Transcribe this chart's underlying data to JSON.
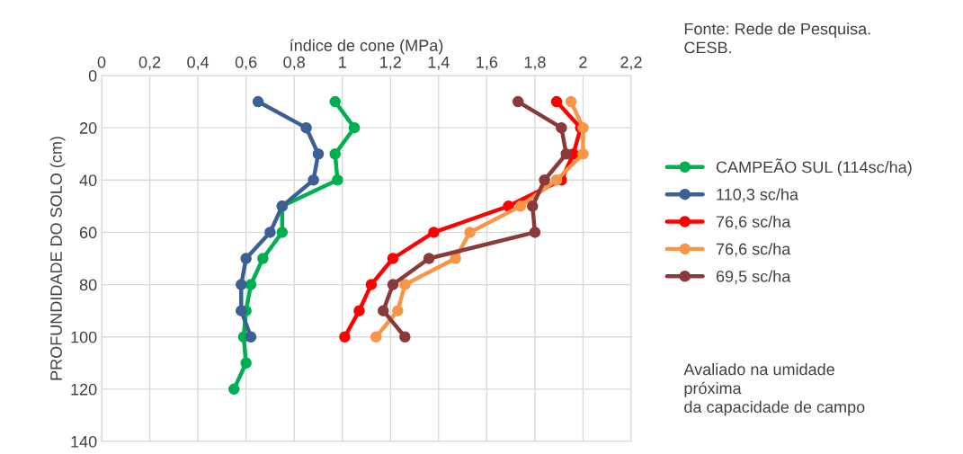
{
  "chart_data": {
    "type": "line",
    "xlabel": "índice de cone (MPa)",
    "ylabel": "PROFUNDIDADE DO SOLO (cm)",
    "xlim": [
      0,
      2.2
    ],
    "xticks": [
      0,
      {
        "value": 0.2,
        "label": "0,2"
      },
      {
        "value": 0.4,
        "label": "0,4"
      },
      {
        "value": 0.6,
        "label": "0,6"
      },
      {
        "value": 0.8,
        "label": "0,8"
      },
      1,
      {
        "value": 1.2,
        "label": "1,2"
      },
      {
        "value": 1.4,
        "label": "1,4"
      },
      {
        "value": 1.6,
        "label": "1,6"
      },
      {
        "value": 1.8,
        "label": "1,8"
      },
      2,
      {
        "value": 2.2,
        "label": "2,2"
      }
    ],
    "ylim": [
      140,
      0
    ],
    "yticks": [
      0,
      20,
      40,
      60,
      80,
      100,
      120,
      140
    ],
    "grid": true,
    "legend": "right",
    "marker": "circle",
    "line_style": "solid",
    "annotations": [
      "Fonte: Rede de Pesquisa.\nCESB.",
      "Avaliado na umidade\npróxima\nda capacidade de campo"
    ],
    "series": [
      {
        "name": "CAMPEÃO SUL (114sc/ha)",
        "color": "#00b050",
        "x": [
          0.97,
          1.05,
          0.97,
          0.98,
          0.75,
          0.75,
          0.67,
          0.62,
          0.6,
          0.59,
          0.6,
          0.55
        ],
        "values": [
          10,
          20,
          30,
          40,
          50,
          60,
          70,
          80,
          90,
          100,
          110,
          120
        ]
      },
      {
        "name": "110,3 sc/ha",
        "color": "#3b6094",
        "x": [
          0.65,
          0.85,
          0.9,
          0.88,
          0.75,
          0.7,
          0.6,
          0.58,
          0.58,
          0.62
        ],
        "values": [
          10,
          20,
          30,
          40,
          50,
          60,
          70,
          80,
          90,
          100
        ]
      },
      {
        "name": "76,6 sc/ha",
        "color": "#ff0000",
        "x": [
          1.89,
          1.99,
          1.96,
          1.91,
          1.69,
          1.38,
          1.21,
          1.12,
          1.07,
          1.01
        ],
        "values": [
          10,
          20,
          30,
          40,
          50,
          60,
          70,
          80,
          90,
          100
        ]
      },
      {
        "name": "76,6 sc/ha",
        "color": "#f79646",
        "x": [
          1.95,
          2.0,
          2.0,
          1.89,
          1.74,
          1.53,
          1.47,
          1.26,
          1.23,
          1.14
        ],
        "values": [
          10,
          20,
          30,
          40,
          50,
          60,
          70,
          80,
          90,
          100
        ]
      },
      {
        "name": "69,5 sc/ha",
        "color": "#8b3a3a",
        "x": [
          1.73,
          1.91,
          1.93,
          1.84,
          1.79,
          1.8,
          1.36,
          1.21,
          1.17,
          1.26
        ],
        "values": [
          10,
          20,
          30,
          40,
          50,
          60,
          70,
          80,
          90,
          100
        ]
      }
    ]
  }
}
